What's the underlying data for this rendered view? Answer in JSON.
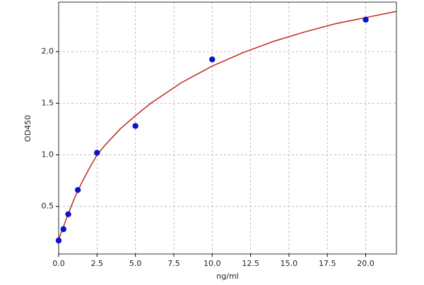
{
  "chart_data": {
    "type": "scatter",
    "xlabel": "ng/ml",
    "ylabel": "OD450",
    "xlim": [
      0,
      22
    ],
    "ylim": [
      0.04,
      2.48
    ],
    "xticks": [
      {
        "value": 0,
        "label": "0.0"
      },
      2.5,
      {
        "value": 5,
        "label": "5.0"
      },
      7.5,
      {
        "value": 10,
        "label": "10.0"
      },
      12.5,
      {
        "value": 15,
        "label": "15.0"
      },
      17.5,
      {
        "value": 20,
        "label": "20.0"
      }
    ],
    "yticks": [
      0.5,
      {
        "value": 1,
        "label": "1.0"
      },
      1.5,
      {
        "value": 2,
        "label": "2.0"
      }
    ],
    "grid": true,
    "points": {
      "color": "#1010c8",
      "x": [
        0,
        0.3125,
        0.625,
        1.25,
        2.5,
        5,
        10,
        20
      ],
      "values": [
        0.17,
        0.28,
        0.425,
        0.66,
        1.02,
        1.28,
        1.925,
        2.31
      ]
    },
    "curve": {
      "color": "#c0281e",
      "x": [
        0,
        0.5,
        1,
        1.5,
        2,
        2.5,
        3,
        4,
        5,
        6,
        7,
        8,
        9,
        10,
        12,
        14,
        16,
        18,
        20,
        22
      ],
      "values": [
        0.18,
        0.38,
        0.57,
        0.73,
        0.87,
        1.0,
        1.09,
        1.25,
        1.38,
        1.5,
        1.6,
        1.7,
        1.78,
        1.86,
        1.99,
        2.1,
        2.19,
        2.27,
        2.33,
        2.39
      ]
    }
  }
}
